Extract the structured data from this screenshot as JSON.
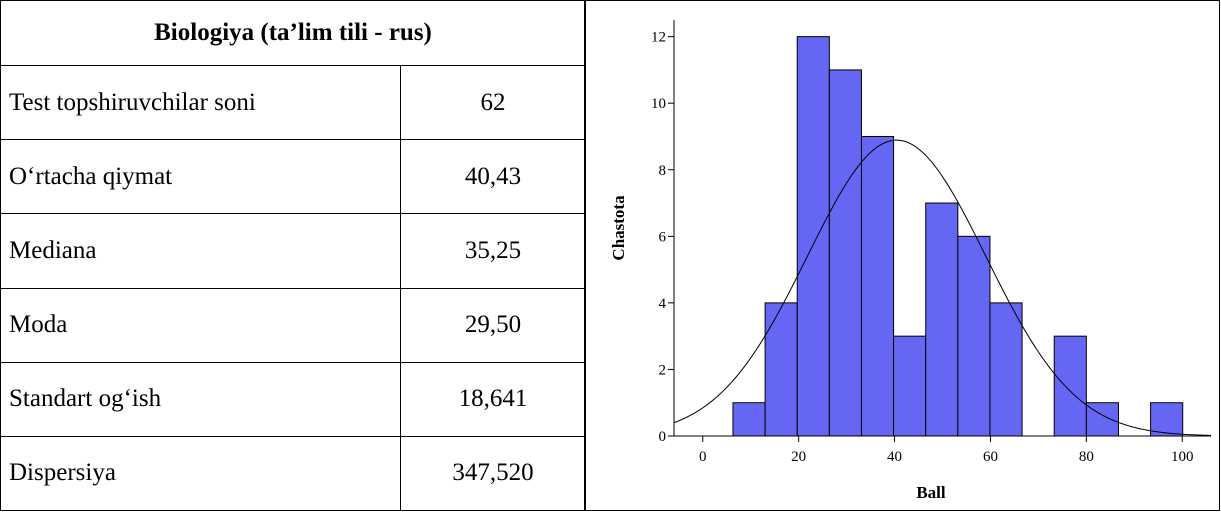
{
  "table": {
    "title": "Biologiya (ta’lim tili - rus)",
    "rows": [
      {
        "label": "Test topshiruvchilar soni",
        "value": "62"
      },
      {
        "label": "O‘rtacha qiymat",
        "value": "40,43"
      },
      {
        "label": "Mediana",
        "value": "35,25"
      },
      {
        "label": "Moda",
        "value": "29,50"
      },
      {
        "label": "Standart og‘ish",
        "value": "18,641"
      },
      {
        "label": "Dispersiya",
        "value": "347,520"
      }
    ]
  },
  "chart_data": {
    "type": "bar",
    "subtype": "histogram_with_normal_curve",
    "xlabel": "Ball",
    "ylabel": "Chastota",
    "xlim": [
      -6,
      106
    ],
    "ylim": [
      0,
      12.5
    ],
    "xticks": [
      0,
      20,
      40,
      60,
      80,
      100
    ],
    "yticks": [
      0,
      2,
      4,
      6,
      8,
      10,
      12
    ],
    "bin_width": 6.7,
    "bins": [
      {
        "start": 6.3,
        "count": 1
      },
      {
        "start": 13.0,
        "count": 4
      },
      {
        "start": 19.7,
        "count": 12
      },
      {
        "start": 26.4,
        "count": 11
      },
      {
        "start": 33.1,
        "count": 9
      },
      {
        "start": 39.8,
        "count": 3
      },
      {
        "start": 46.5,
        "count": 7
      },
      {
        "start": 53.2,
        "count": 6
      },
      {
        "start": 59.9,
        "count": 4
      },
      {
        "start": 66.6,
        "count": 0
      },
      {
        "start": 73.3,
        "count": 3
      },
      {
        "start": 80.0,
        "count": 1
      },
      {
        "start": 86.7,
        "count": 0
      },
      {
        "start": 93.4,
        "count": 1
      }
    ],
    "normal_curve": {
      "mean": 40.43,
      "sd": 18.641,
      "n": 62
    },
    "bar_color": "#6666f5",
    "bar_edge_color": "#000000",
    "grid": false
  }
}
